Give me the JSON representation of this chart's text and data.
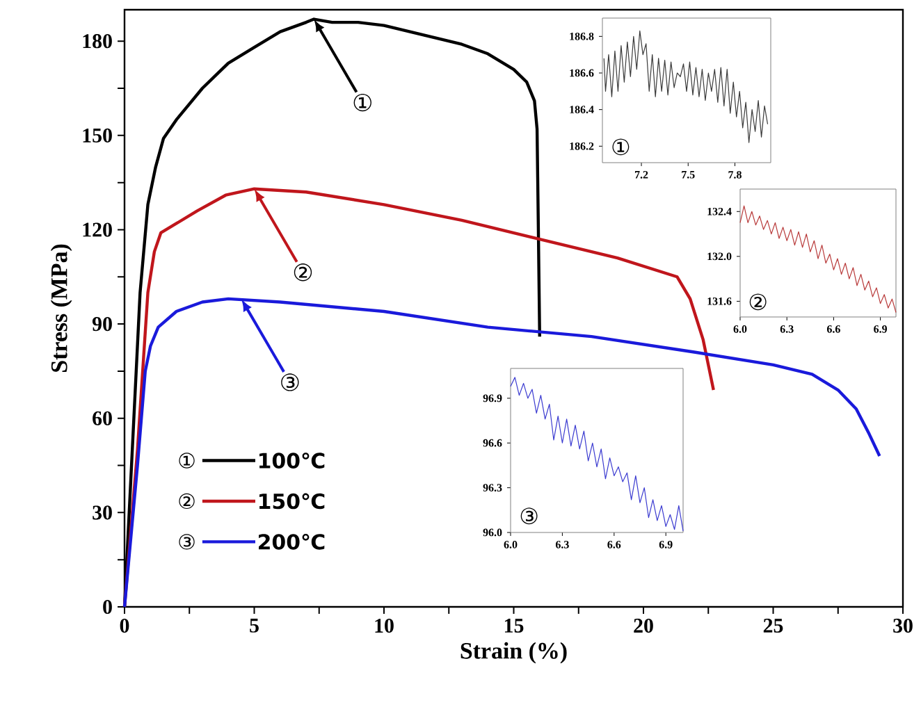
{
  "chart_data": [
    {
      "type": "line",
      "xlabel": "Strain (%)",
      "ylabel": "Stress (MPa)",
      "xlim": [
        0,
        30
      ],
      "ylim": [
        0,
        190
      ],
      "xticks": [
        0,
        {
          "value": 2.5,
          "label": null
        },
        5,
        {
          "value": 7.5,
          "label": null
        },
        10,
        {
          "value": 12.5,
          "label": null
        },
        15,
        {
          "value": 17.5,
          "label": null
        },
        20,
        {
          "value": 22.5,
          "label": null
        },
        25,
        {
          "value": 27.5,
          "label": null
        },
        30
      ],
      "yticks": [
        0,
        {
          "value": 15,
          "label": null
        },
        30,
        {
          "value": 45,
          "label": null
        },
        60,
        {
          "value": 75,
          "label": null
        },
        90,
        {
          "value": 105,
          "label": null
        },
        120,
        {
          "value": 135,
          "label": null
        },
        150,
        {
          "value": 165,
          "label": null
        },
        180
      ],
      "legend": "bottom left",
      "series": [
        {
          "name": "100℃",
          "color": "#000000",
          "x": [
            0,
            0.3,
            0.6,
            0.9,
            1.2,
            1.5,
            2,
            2.5,
            3,
            3.5,
            4,
            5,
            6,
            7,
            7.3,
            8,
            9,
            10,
            11,
            12,
            13,
            14,
            15,
            15.5,
            15.8,
            15.9,
            15.95,
            16
          ],
          "values": [
            0,
            50,
            100,
            128,
            140,
            149,
            155,
            160,
            165,
            169,
            173,
            178,
            183,
            186,
            187,
            186,
            186,
            185,
            183,
            181,
            179,
            176,
            171,
            167,
            161,
            152,
            120,
            86
          ]
        },
        {
          "name": "150℃",
          "color": "#c0161c",
          "x": [
            0,
            0.5,
            0.9,
            1.15,
            1.4,
            2,
            2.8,
            3.9,
            5,
            7,
            10,
            13,
            16,
            19,
            21.3,
            21.8,
            22.3,
            22.7
          ],
          "values": [
            0,
            50,
            100,
            113,
            119,
            122,
            126,
            131,
            133,
            132,
            128,
            123,
            117,
            111,
            105,
            98,
            85,
            69
          ]
        },
        {
          "name": "200℃",
          "color": "#1a1adb",
          "x": [
            0,
            0.5,
            0.8,
            1,
            1.3,
            2,
            3,
            4,
            6,
            10,
            14,
            18,
            22,
            25,
            26.5,
            27.5,
            28.2,
            28.7,
            29.1
          ],
          "values": [
            0,
            45,
            75,
            83,
            89,
            94,
            97,
            98,
            97,
            94,
            89,
            86,
            81,
            77,
            74,
            69,
            63,
            55,
            48
          ]
        }
      ],
      "annotations": [
        {
          "text": "①",
          "x": 7.3,
          "y": 187
        },
        {
          "text": "②",
          "x": 5,
          "y": 133
        },
        {
          "text": "③",
          "x": 4.5,
          "y": 98
        }
      ]
    },
    {
      "type": "line",
      "xlim": [
        6.95,
        8.03
      ],
      "ylim": [
        186.11,
        186.9
      ],
      "xticks": [
        7.2,
        7.5,
        7.8
      ],
      "yticks": [
        186.2,
        186.4,
        186.6,
        186.8
      ],
      "series": [
        {
          "color": "#3a3a3a",
          "x": [
            6.96,
            6.97,
            6.99,
            7.01,
            7.03,
            7.05,
            7.07,
            7.09,
            7.11,
            7.13,
            7.15,
            7.17,
            7.19,
            7.21,
            7.23,
            7.25,
            7.27,
            7.29,
            7.31,
            7.33,
            7.35,
            7.37,
            7.39,
            7.41,
            7.43,
            7.45,
            7.47,
            7.49,
            7.51,
            7.53,
            7.55,
            7.57,
            7.59,
            7.61,
            7.63,
            7.65,
            7.67,
            7.69,
            7.71,
            7.73,
            7.75,
            7.77,
            7.79,
            7.81,
            7.83,
            7.85,
            7.87,
            7.89,
            7.91,
            7.93,
            7.95,
            7.97,
            7.99,
            8.01
          ],
          "values": [
            186.68,
            186.5,
            186.7,
            186.47,
            186.72,
            186.5,
            186.75,
            186.55,
            186.77,
            186.58,
            186.8,
            186.62,
            186.83,
            186.7,
            186.76,
            186.5,
            186.7,
            186.47,
            186.68,
            186.5,
            186.67,
            186.48,
            186.66,
            186.52,
            186.6,
            186.58,
            186.65,
            186.5,
            186.66,
            186.48,
            186.63,
            186.47,
            186.62,
            186.45,
            186.6,
            186.5,
            186.62,
            186.44,
            186.63,
            186.42,
            186.62,
            186.38,
            186.55,
            186.36,
            186.5,
            186.3,
            186.44,
            186.22,
            186.4,
            186.28,
            186.45,
            186.25,
            186.42,
            186.32
          ]
        }
      ],
      "annotations": [
        "①"
      ]
    },
    {
      "type": "line",
      "xlim": [
        6.0,
        7.0
      ],
      "ylim": [
        131.46,
        132.6
      ],
      "xticks": [
        {
          "value": 6.0,
          "label": "6.0"
        },
        6.3,
        6.6,
        6.9
      ],
      "yticks": [
        {
          "value": 131.6,
          "label": "131.6"
        },
        {
          "value": 132.0,
          "label": "132.0"
        },
        {
          "value": 132.4,
          "label": "132.4"
        }
      ],
      "series": [
        {
          "color": "#b83a3a",
          "x": [
            6.0,
            6.025,
            6.05,
            6.075,
            6.1,
            6.125,
            6.15,
            6.175,
            6.2,
            6.225,
            6.25,
            6.275,
            6.3,
            6.325,
            6.35,
            6.375,
            6.4,
            6.425,
            6.45,
            6.475,
            6.5,
            6.525,
            6.55,
            6.575,
            6.6,
            6.625,
            6.65,
            6.675,
            6.7,
            6.725,
            6.75,
            6.775,
            6.8,
            6.825,
            6.85,
            6.875,
            6.9,
            6.925,
            6.95,
            6.975,
            7.0
          ],
          "values": [
            132.3,
            132.45,
            132.3,
            132.4,
            132.28,
            132.36,
            132.24,
            132.32,
            132.2,
            132.3,
            132.16,
            132.26,
            132.14,
            132.24,
            132.1,
            132.22,
            132.08,
            132.2,
            132.04,
            132.14,
            131.98,
            132.1,
            131.94,
            132.02,
            131.88,
            131.98,
            131.84,
            131.94,
            131.8,
            131.9,
            131.74,
            131.84,
            131.7,
            131.78,
            131.64,
            131.72,
            131.58,
            131.66,
            131.54,
            131.62,
            131.5
          ]
        }
      ],
      "annotations": [
        "②"
      ]
    },
    {
      "type": "line",
      "xlim": [
        6.0,
        7.0
      ],
      "ylim": [
        96.0,
        97.1
      ],
      "xticks": [
        {
          "value": 6.0,
          "label": "6.0"
        },
        6.3,
        6.6,
        6.9
      ],
      "yticks": [
        {
          "value": 96.0,
          "label": "96.0"
        },
        96.3,
        96.6,
        96.9
      ],
      "series": [
        {
          "color": "#3a3ad0",
          "x": [
            6.0,
            6.025,
            6.05,
            6.075,
            6.1,
            6.125,
            6.15,
            6.175,
            6.2,
            6.225,
            6.25,
            6.275,
            6.3,
            6.325,
            6.35,
            6.375,
            6.4,
            6.425,
            6.45,
            6.475,
            6.5,
            6.525,
            6.55,
            6.575,
            6.6,
            6.625,
            6.65,
            6.675,
            6.7,
            6.725,
            6.75,
            6.775,
            6.8,
            6.825,
            6.85,
            6.875,
            6.9,
            6.925,
            6.95,
            6.975,
            7.0
          ],
          "values": [
            96.98,
            97.04,
            96.92,
            97.0,
            96.9,
            96.96,
            96.8,
            96.92,
            96.76,
            96.86,
            96.62,
            96.78,
            96.6,
            96.76,
            96.58,
            96.72,
            96.56,
            96.68,
            96.48,
            96.6,
            96.44,
            96.56,
            96.36,
            96.5,
            96.38,
            96.44,
            96.34,
            96.4,
            96.22,
            96.38,
            96.2,
            96.3,
            96.1,
            96.22,
            96.08,
            96.18,
            96.04,
            96.12,
            96.02,
            96.18,
            96.01
          ]
        }
      ],
      "annotations": [
        "③"
      ]
    }
  ]
}
